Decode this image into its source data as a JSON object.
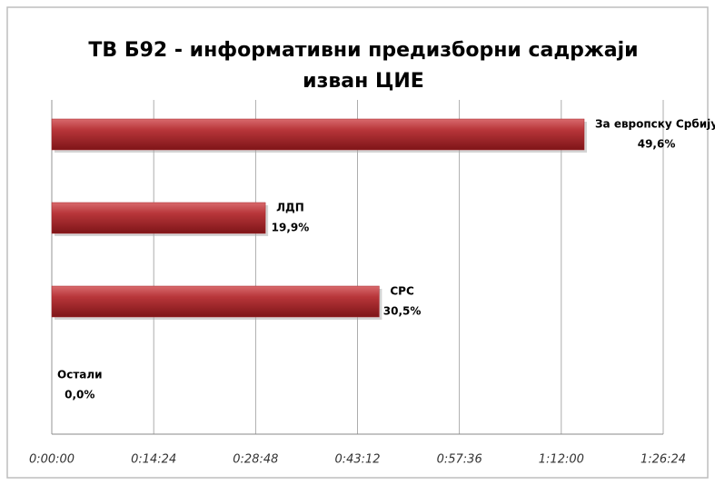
{
  "chart_data": {
    "type": "bar",
    "orientation": "horizontal",
    "title": [
      "ТВ Б92 - информативни предизборни садржаји",
      "изван ЦИЕ"
    ],
    "categories": [
      "За европску Србију",
      "ЛДП",
      "СРС",
      "Остали"
    ],
    "values": [
      4514,
      1811,
      2776,
      0
    ],
    "data_labels": [
      "49,6%",
      "19,9%",
      "30,5%",
      "0,0%"
    ],
    "color": "#a8262b",
    "xlim": [
      0,
      5184
    ],
    "xticks": [
      {
        "value": 0,
        "label": "0:00:00"
      },
      {
        "value": 864,
        "label": "0:14:24"
      },
      {
        "value": 1728,
        "label": "0:28:48"
      },
      {
        "value": 2592,
        "label": "0:43:12"
      },
      {
        "value": 3456,
        "label": "0:57:36"
      },
      {
        "value": 4320,
        "label": "1:12:00"
      },
      {
        "value": 5184,
        "label": "1:26:24"
      }
    ],
    "grid": true
  }
}
